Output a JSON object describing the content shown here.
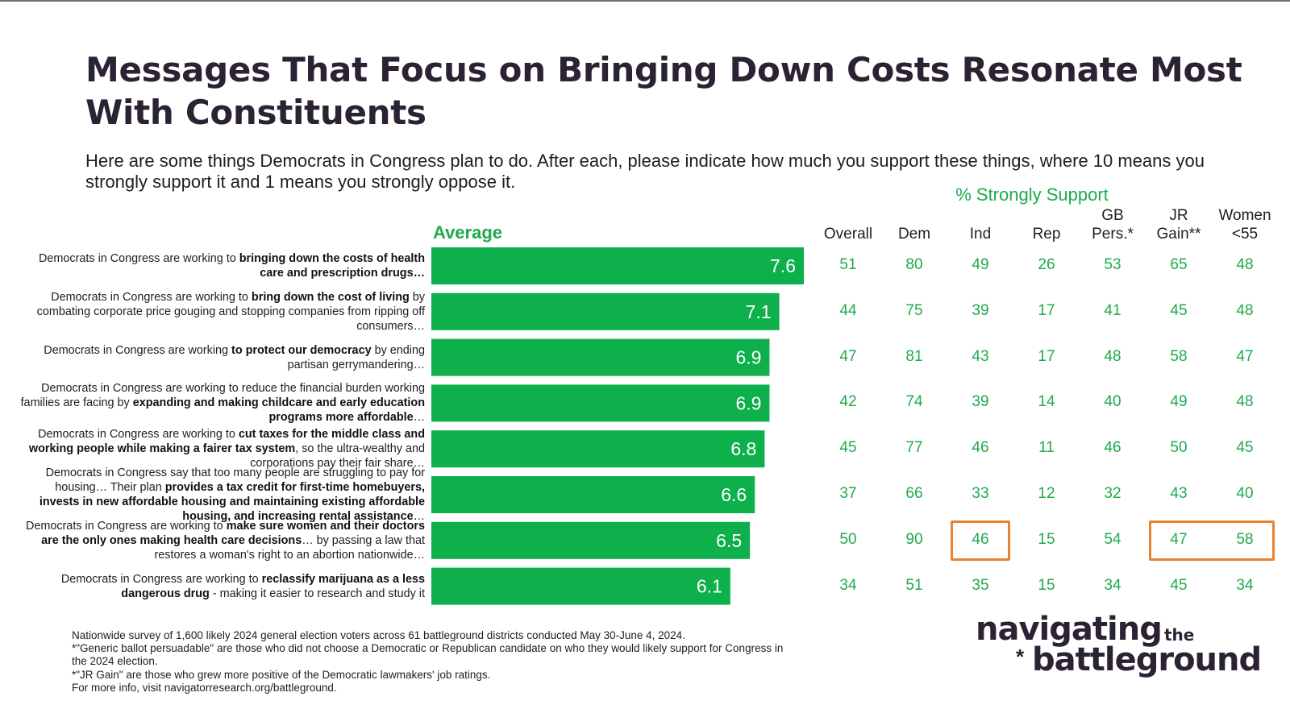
{
  "title": "Messages That Focus on Bringing Down Costs Resonate Most With Constituents",
  "subtitle": "Here are some things Democrats in Congress plan to do. After each, please indicate how much you support these things, where 10 means you strongly support it and 1 means you strongly oppose it.",
  "strongly_support_header": "% Strongly Support",
  "average_label": "Average",
  "columns": [
    "Overall",
    "Dem",
    "Ind",
    "Rep",
    "GB\nPers.*",
    "JR\nGain**",
    "Women\n<55"
  ],
  "rows": [
    {
      "pre": "Democrats in Congress are working to ",
      "bold": "bringing down the costs of health care and prescription drugs…",
      "post": ""
    },
    {
      "pre": "Democrats in Congress are working to ",
      "bold": "bring down the cost of living",
      "post": " by combating corporate price gouging and stopping companies from ripping off consumers…"
    },
    {
      "pre": "Democrats in Congress are working ",
      "bold": "to protect our democracy",
      "post": " by ending partisan gerrymandering…"
    },
    {
      "pre": "Democrats in Congress are working to reduce the financial burden working families are facing by ",
      "bold": "expanding and making childcare and early education programs more affordable",
      "post": "…"
    },
    {
      "pre": "Democrats in Congress are working to ",
      "bold": "cut taxes for the middle class and working people while making a fairer tax system",
      "post": ", so the ultra-wealthy and corporations pay their fair share…"
    },
    {
      "pre": "Democrats in Congress say that too many people are struggling to pay for housing… Their plan ",
      "bold": "provides a tax credit for first-time homebuyers, invests in new affordable housing and maintaining existing affordable housing, and increasing rental assistance",
      "post": "…"
    },
    {
      "pre": "Democrats in Congress are working to ",
      "bold": "make sure women and their doctors are the only ones making health care decisions",
      "post": "… by passing a law that restores a woman's right to an abortion nationwide…"
    },
    {
      "pre": "Democrats in Congress are working to ",
      "bold": "reclassify marijuana as a less dangerous drug",
      "post": " - making it easier to research and study it"
    }
  ],
  "chart_data": {
    "type": "bar",
    "orientation": "horizontal",
    "title": "Messages That Focus on Bringing Down Costs Resonate Most With Constituents",
    "series": [
      {
        "name": "Average",
        "values": [
          7.6,
          7.1,
          6.9,
          6.9,
          6.8,
          6.6,
          6.5,
          6.1
        ]
      }
    ],
    "xlim": [
      0,
      7.6
    ],
    "bar_color": "#0db04b",
    "value_label_color": "#ffffff"
  },
  "table": {
    "header": "% Strongly Support",
    "columns": [
      "Overall",
      "Dem",
      "Ind",
      "Rep",
      "GB Pers.*",
      "JR Gain**",
      "Women <55"
    ],
    "values": [
      [
        51,
        80,
        49,
        26,
        53,
        65,
        48
      ],
      [
        44,
        75,
        39,
        17,
        41,
        45,
        48
      ],
      [
        47,
        81,
        43,
        17,
        48,
        58,
        47
      ],
      [
        42,
        74,
        39,
        14,
        40,
        49,
        48
      ],
      [
        45,
        77,
        46,
        11,
        46,
        50,
        45
      ],
      [
        37,
        66,
        33,
        12,
        32,
        43,
        40
      ],
      [
        50,
        90,
        46,
        15,
        54,
        47,
        58
      ],
      [
        34,
        51,
        35,
        15,
        34,
        45,
        34
      ]
    ],
    "value_color": "#1faa4b",
    "highlights": [
      {
        "row": 6,
        "col_start": 2,
        "col_end": 2
      },
      {
        "row": 6,
        "col_start": 5,
        "col_end": 6
      }
    ],
    "highlight_color": "#e8822e"
  },
  "footnotes": [
    "Nationwide survey of 1,600 likely 2024 general election voters across 61 battleground districts conducted May 30-June 4, 2024.",
    "*\"Generic ballot persuadable\" are those who did not choose a Democratic or Republican candidate on who they would likely support for Congress in the 2024 election.",
    "*\"JR Gain\" are those who grew more positive of the Democratic lawmakers' job ratings.",
    "For more info, visit navigatorresearch.org/battleground."
  ],
  "logo": {
    "line1": "navigating",
    "the": "the",
    "star": "*",
    "line2": "battleground"
  }
}
